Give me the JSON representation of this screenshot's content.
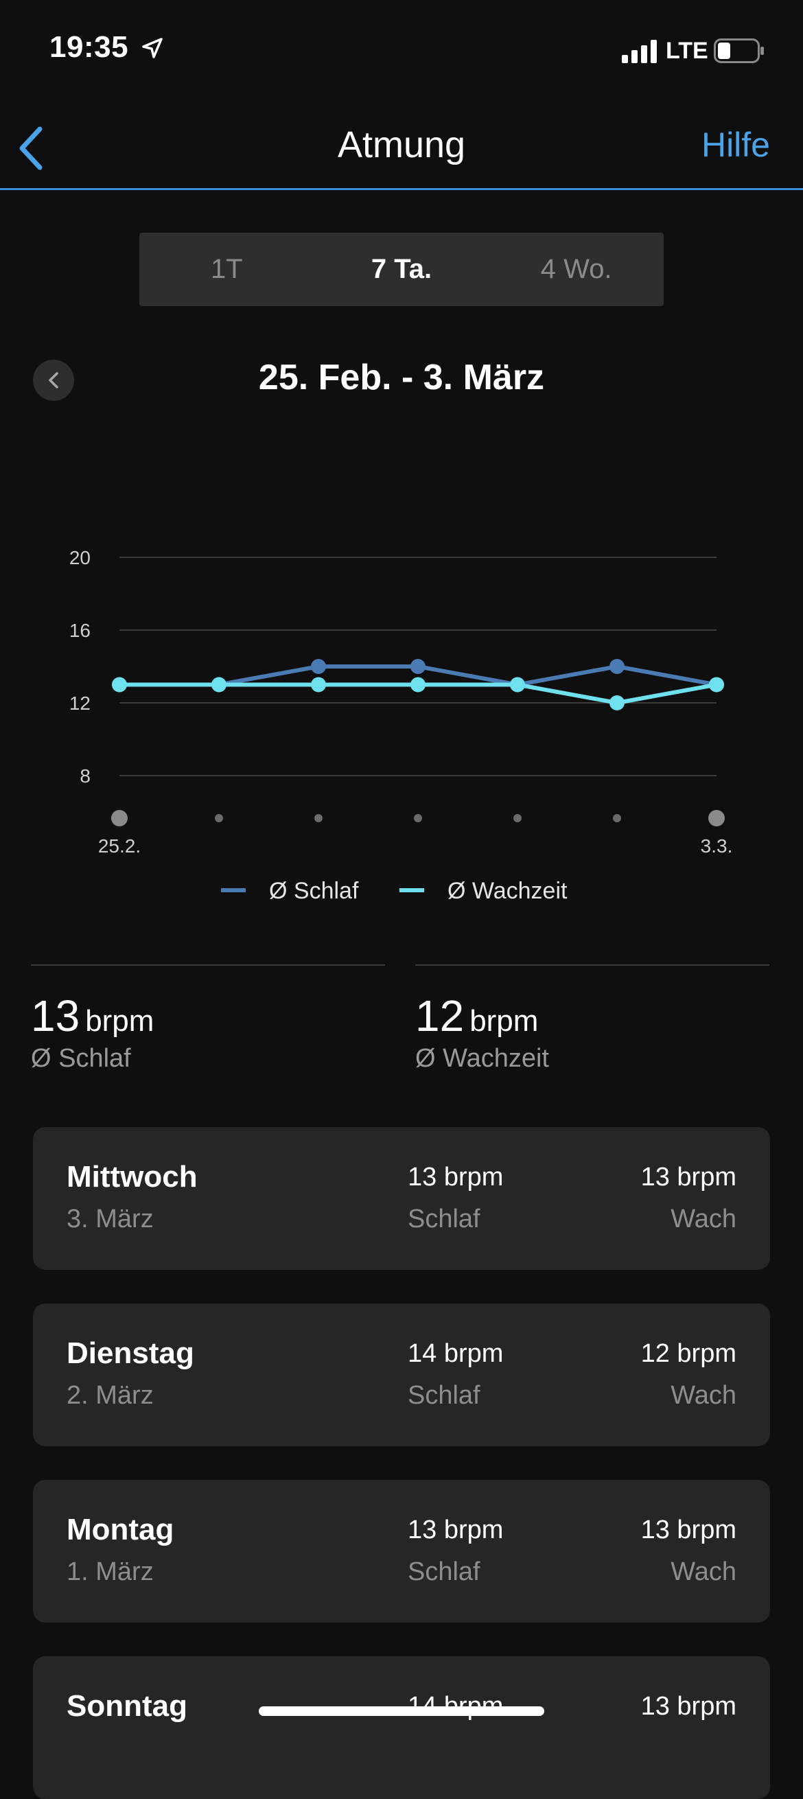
{
  "status_bar": {
    "time": "19:35",
    "network": "LTE"
  },
  "header": {
    "title": "Atmung",
    "help_label": "Hilfe"
  },
  "range_tabs": [
    {
      "label": "1T",
      "active": false
    },
    {
      "label": "7 Ta.",
      "active": true
    },
    {
      "label": "4 Wo.",
      "active": false
    }
  ],
  "date_range": "25. Feb. - 3. März",
  "chart_data": {
    "type": "line",
    "x": [
      "25.2.",
      "26.2.",
      "27.2.",
      "28.2.",
      "1.3.",
      "2.3.",
      "3.3."
    ],
    "x_tick_labels": [
      "25.2.",
      "",
      "",
      "",
      "",
      "",
      "3.3."
    ],
    "y_ticks": [
      20,
      16,
      12,
      8
    ],
    "ylim": [
      8,
      20
    ],
    "grid": true,
    "legend_position": "bottom",
    "series": [
      {
        "name": "Ø Schlaf",
        "color": "#4a7bb3",
        "values": [
          13,
          13,
          14,
          14,
          13,
          14,
          13
        ]
      },
      {
        "name": "Ø Wachzeit",
        "color": "#6ee0ee",
        "values": [
          13,
          13,
          13,
          13,
          13,
          12,
          13
        ]
      }
    ]
  },
  "summary": {
    "sleep": {
      "value": "13",
      "unit": "brpm",
      "label": "Ø Schlaf"
    },
    "awake": {
      "value": "12",
      "unit": "brpm",
      "label": "Ø Wachzeit"
    }
  },
  "days": [
    {
      "day": "Mittwoch",
      "date": "3. März",
      "sleep_value": "13 brpm",
      "sleep_label": "Schlaf",
      "awake_value": "13 brpm",
      "awake_label": "Wach"
    },
    {
      "day": "Dienstag",
      "date": "2. März",
      "sleep_value": "14 brpm",
      "sleep_label": "Schlaf",
      "awake_value": "12 brpm",
      "awake_label": "Wach"
    },
    {
      "day": "Montag",
      "date": "1. März",
      "sleep_value": "13 brpm",
      "sleep_label": "Schlaf",
      "awake_value": "13 brpm",
      "awake_label": "Wach"
    },
    {
      "day": "Sonntag",
      "date": "",
      "sleep_value": "14 brpm",
      "sleep_label": "",
      "awake_value": "13 brpm",
      "awake_label": ""
    }
  ]
}
